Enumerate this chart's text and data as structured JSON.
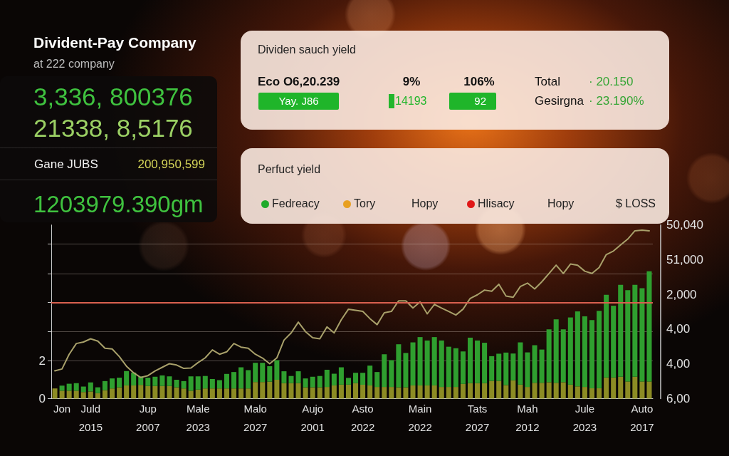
{
  "chart_data": [
    {
      "type": "other",
      "title": "Divident-Pay Company",
      "subtitle": "at 222 company",
      "annotations": [
        "3,336, 800376",
        "21338, 8,5176",
        "Gane JUBS",
        "200,950,599",
        "1203979.390gm"
      ]
    },
    {
      "type": "other",
      "title": "Dividen sauch yield",
      "annotations": [
        "Eco O6,20.239",
        "9%",
        "106%",
        "Total",
        "· 20.150",
        "Yay. J86",
        "14193",
        "92",
        "Gesirgna",
        "· 23.190%"
      ]
    },
    {
      "type": "other",
      "title": "Perfuct yield",
      "annotations": [
        "Fedreacy",
        "Tory",
        "Hopy",
        "Hlisacy",
        "Hopy",
        "$ LOSS"
      ]
    },
    {
      "type": "bar",
      "stacked": true,
      "categories": [
        null,
        "Jon",
        null,
        null,
        null,
        "Juld\n2015",
        null,
        null,
        null,
        null,
        null,
        null,
        null,
        "Jup\n2007",
        null,
        null,
        null,
        null,
        null,
        null,
        "Male\n2023",
        null,
        null,
        null,
        null,
        null,
        null,
        null,
        "Malo\n2027",
        null,
        null,
        null,
        null,
        null,
        null,
        null,
        "Aujo\n2001",
        null,
        null,
        null,
        null,
        null,
        null,
        "Asto\n2022",
        null,
        null,
        null,
        null,
        null,
        null,
        null,
        "Main\n2022",
        null,
        null,
        null,
        null,
        null,
        null,
        null,
        "Tats\n2027",
        null,
        null,
        null,
        null,
        null,
        null,
        "Mah\n2012",
        null,
        null,
        null,
        null,
        null,
        null,
        null,
        "Jule\n2023",
        null,
        null,
        null,
        null,
        null,
        null,
        null,
        "Auto\n2017",
        null
      ],
      "series": [
        {
          "color": "#8c8c24",
          "values": [
            0.54,
            0.42,
            0.42,
            0.42,
            0.35,
            0.38,
            0.29,
            0.45,
            0.54,
            0.6,
            0.7,
            0.7,
            0.73,
            0.67,
            0.67,
            0.67,
            0.67,
            0.6,
            0.54,
            0.42,
            0.48,
            0.54,
            0.54,
            0.54,
            0.54,
            0.54,
            0.54,
            0.54,
            0.88,
            0.88,
            0.9,
            1.0,
            0.82,
            0.82,
            0.82,
            0.6,
            0.6,
            0.6,
            0.62,
            0.7,
            0.74,
            0.74,
            0.82,
            0.74,
            0.7,
            0.62,
            0.62,
            0.62,
            0.6,
            0.6,
            0.7,
            0.7,
            0.7,
            0.7,
            0.62,
            0.62,
            0.62,
            0.78,
            0.82,
            0.82,
            0.82,
            0.94,
            0.94,
            0.72,
            0.97,
            0.74,
            0.62,
            0.84,
            0.84,
            0.87,
            0.84,
            0.87,
            0.74,
            0.65,
            0.62,
            0.55,
            0.55,
            1.12,
            1.12,
            1.16,
            0.91,
            1.16,
            0.91,
            0.91
          ]
        },
        {
          "color": "#2f9f2f",
          "values": [
            0,
            0.27,
            0.37,
            0.4,
            0.29,
            0.48,
            0.31,
            0.48,
            0.53,
            0.51,
            0.76,
            0.68,
            0.44,
            0.44,
            0.49,
            0.56,
            0.51,
            0.4,
            0.39,
            0.76,
            0.7,
            0.66,
            0.5,
            0.44,
            0.77,
            0.87,
            1.12,
            0.97,
            1.02,
            1.02,
            0.82,
            1.04,
            0.63,
            0.38,
            0.63,
            0.47,
            0.56,
            0.6,
            0.91,
            0.62,
            0.92,
            0.36,
            0.55,
            0.63,
            1.05,
            0.79,
            1.73,
            1.42,
            2.28,
            1.82,
            2.28,
            2.56,
            2.38,
            2.56,
            2.46,
            2.13,
            2.05,
            1.72,
            2.41,
            2.26,
            2.14,
            1.31,
            1.44,
            1.72,
            1.42,
            2.24,
            1.83,
            1.99,
            1.76,
            2.8,
            3.36,
            2.8,
            3.56,
            3.97,
            3.74,
            3.61,
            4.1,
            4.38,
            3.8,
            4.87,
            4.84,
            4.87,
            4.94,
            5.84
          ]
        },
        {
          "type": "line",
          "color": "#a8a06a",
          "values": [
            1.47,
            1.57,
            2.35,
            2.92,
            3.0,
            3.17,
            3.05,
            2.67,
            2.63,
            2.23,
            1.72,
            1.37,
            1.12,
            1.22,
            1.47,
            1.66,
            1.85,
            1.78,
            1.6,
            1.62,
            1.91,
            2.16,
            2.58,
            2.35,
            2.48,
            2.92,
            2.73,
            2.67,
            2.35,
            2.15,
            1.85,
            2.16,
            3.1,
            3.48,
            4.05,
            3.55,
            3.23,
            3.17,
            3.8,
            3.48,
            4.18,
            4.74,
            4.68,
            4.62,
            4.24,
            3.92,
            4.55,
            4.62,
            5.18,
            5.18,
            4.8,
            5.12,
            4.49,
            4.99,
            4.8,
            4.62,
            4.43,
            4.74,
            5.31,
            5.5,
            5.75,
            5.69,
            6.06,
            5.43,
            5.37,
            5.94,
            6.12,
            5.81,
            6.19,
            6.63,
            7.07,
            6.63,
            7.13,
            7.07,
            6.75,
            6.63,
            6.94,
            7.63,
            7.82,
            8.14,
            8.45,
            8.89,
            8.92,
            8.89
          ]
        }
      ],
      "ylim": [
        0,
        9.2
      ],
      "yticks": [
        0,
        2,
        {
          "value": 3.55,
          "label": null
        },
        {
          "value": 5.1,
          "label": null
        },
        {
          "value": 6.6,
          "label": null
        },
        {
          "value": 8.2,
          "label": null
        }
      ],
      "y2_categories": [
        "50,040",
        "51,000",
        "2,000",
        "4,00",
        "4,00",
        "6,00"
      ],
      "ref_lines": [
        {
          "axis": "y",
          "value": 5.1,
          "color": "#d9604f"
        }
      ],
      "grid": "y",
      "marker": "none"
    }
  ]
}
